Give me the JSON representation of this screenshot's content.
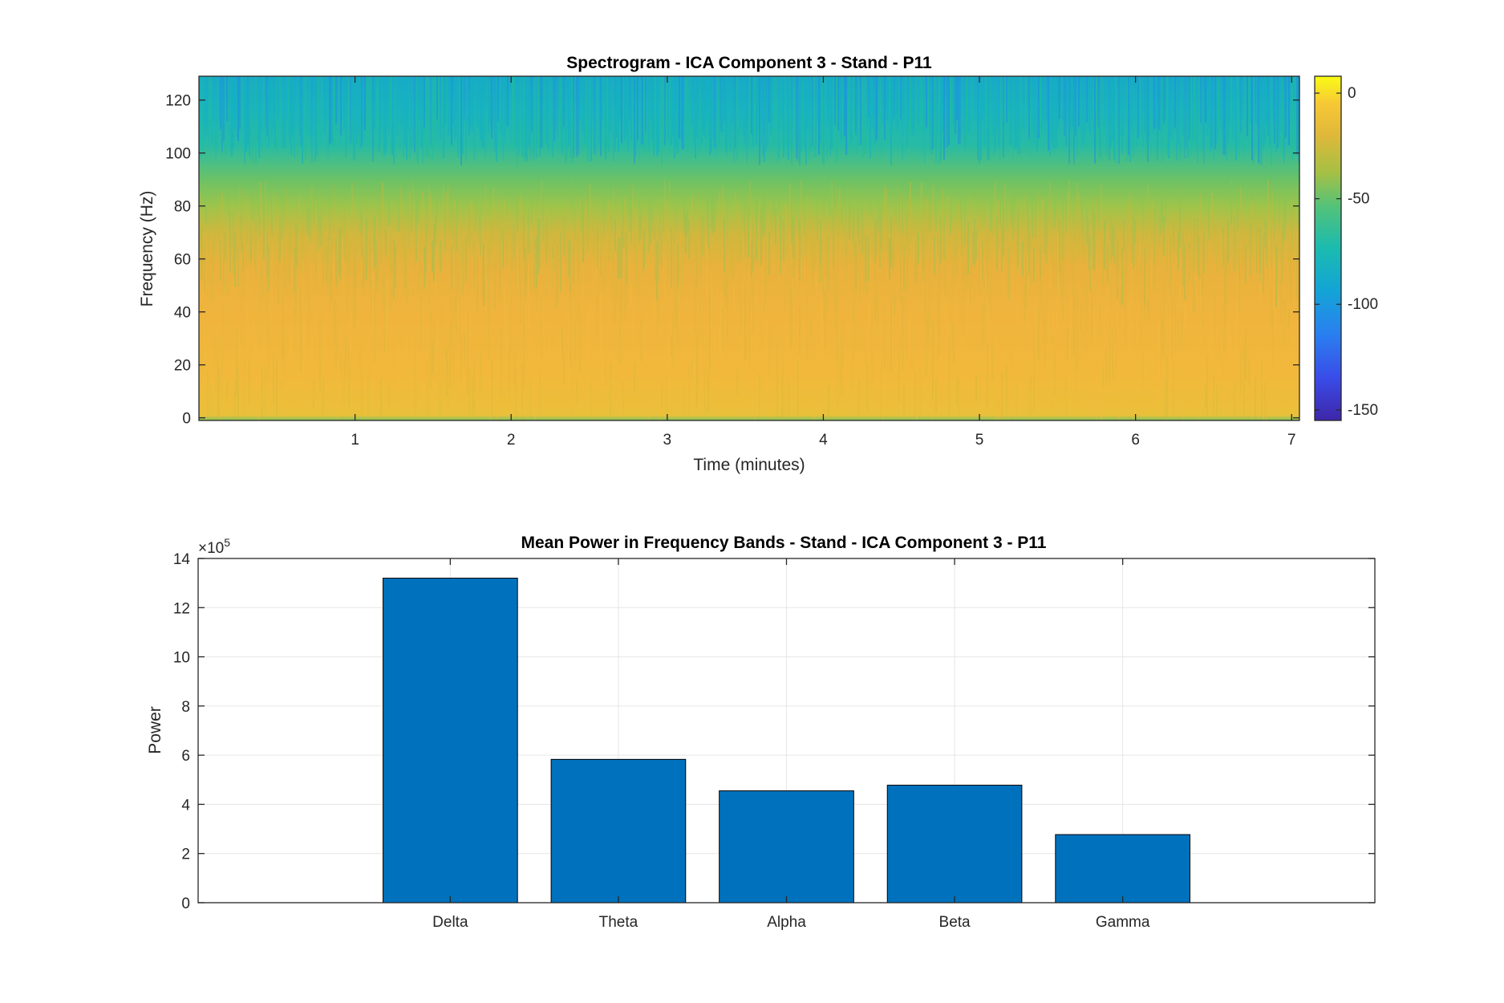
{
  "colors": {
    "bar_fill": "#0072BD",
    "bar_edge": "#000000",
    "axes": "#262626",
    "grid": "#e6e6e6",
    "colormap": [
      "#3e26a8",
      "#2f55f3",
      "#1c8ede",
      "#12b0c2",
      "#21be99",
      "#83c458",
      "#cbb83a",
      "#f6ba3d",
      "#f9fb15"
    ]
  },
  "chart_data": [
    {
      "type": "heatmap",
      "title": "Spectrogram - ICA Component 3 - Stand - P11",
      "xlabel": "Time (minutes)",
      "ylabel": "Frequency (Hz)",
      "xlim": [
        0,
        7.05
      ],
      "ylim": [
        -1,
        129
      ],
      "xticks": [
        1,
        2,
        3,
        4,
        5,
        6,
        7
      ],
      "yticks": [
        0,
        20,
        40,
        60,
        80,
        100,
        120
      ],
      "colorbar": {
        "ticks": [
          0,
          -50,
          -100,
          -150
        ],
        "limits": [
          -155,
          8
        ]
      },
      "grid": false
    },
    {
      "type": "bar",
      "title": "Mean Power in Frequency Bands - Stand - ICA Component 3 - P11",
      "xlabel": "",
      "ylabel": "Power",
      "categories": [
        "Delta",
        "Theta",
        "Alpha",
        "Beta",
        "Gamma"
      ],
      "values": [
        1320000,
        583000,
        455000,
        478000,
        277000
      ],
      "ylim": [
        0,
        1400000
      ],
      "yticks": [
        0,
        2,
        4,
        6,
        8,
        10,
        12,
        14
      ],
      "exponent_base": "×10",
      "exponent": "5",
      "grid": true
    }
  ]
}
